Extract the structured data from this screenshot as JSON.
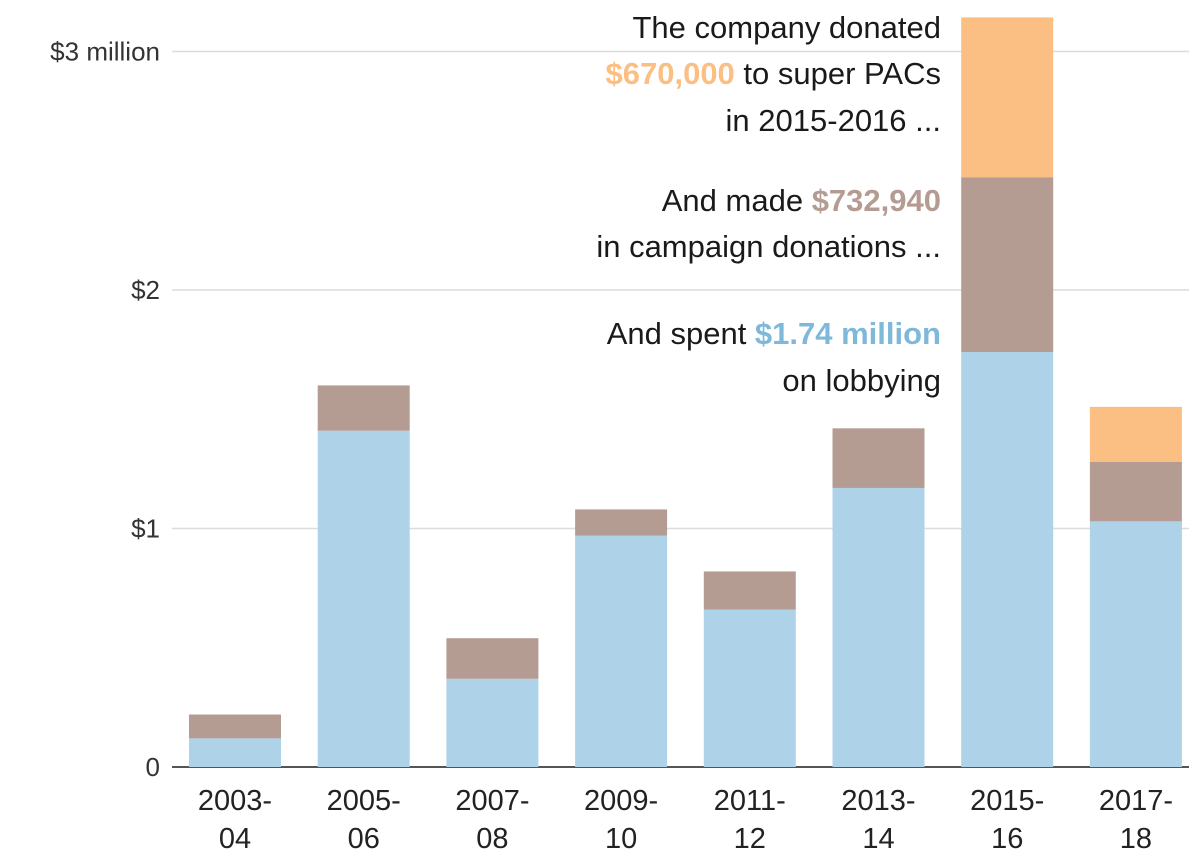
{
  "chart_data": {
    "type": "bar",
    "stacked": true,
    "categories": [
      [
        "2003-",
        "04"
      ],
      [
        "2005-",
        "06"
      ],
      [
        "2007-",
        "08"
      ],
      [
        "2009-",
        "10"
      ],
      [
        "2011-",
        "12"
      ],
      [
        "2013-",
        "14"
      ],
      [
        "2015-",
        "16"
      ],
      [
        "2017-",
        "18"
      ]
    ],
    "series": [
      {
        "key": "lobbying",
        "color": "#aed3e8",
        "values": [
          0.12,
          1.41,
          0.37,
          0.97,
          0.66,
          1.17,
          1.74,
          1.03
        ]
      },
      {
        "key": "campaign",
        "color": "#b59c93",
        "values": [
          0.1,
          0.19,
          0.17,
          0.11,
          0.16,
          0.25,
          0.733,
          0.25
        ]
      },
      {
        "key": "super_pac",
        "color": "#fbbe83",
        "values": [
          0,
          0,
          0,
          0,
          0,
          0,
          0.67,
          0.23
        ]
      }
    ],
    "ylim": [
      0,
      3.15
    ],
    "yticks": [
      {
        "value": 0,
        "label": "0"
      },
      {
        "value": 1,
        "label": "$1"
      },
      {
        "value": 2,
        "label": "$2"
      },
      {
        "value": 3,
        "label": "$3 million"
      }
    ],
    "grid": true,
    "annotations": [
      {
        "series": "super_pac",
        "color": "#fbbe83",
        "lines": [
          [
            {
              "text": "The company donated"
            }
          ],
          [
            {
              "text": "$670,000",
              "highlight": true
            },
            {
              "text": " to super PACs"
            }
          ],
          [
            {
              "text": "in 2015-2016 ..."
            }
          ]
        ]
      },
      {
        "series": "campaign",
        "color": "#b59c93",
        "lines": [
          [
            {
              "text": "And made "
            },
            {
              "text": "$732,940",
              "highlight": true
            }
          ],
          [
            {
              "text": "in campaign donations ..."
            }
          ]
        ]
      },
      {
        "series": "lobbying",
        "color": "#7fb9da",
        "lines": [
          [
            {
              "text": "And spent "
            },
            {
              "text": "$1.74 million",
              "highlight": true
            }
          ],
          [
            {
              "text": "on lobbying"
            }
          ]
        ]
      }
    ]
  }
}
